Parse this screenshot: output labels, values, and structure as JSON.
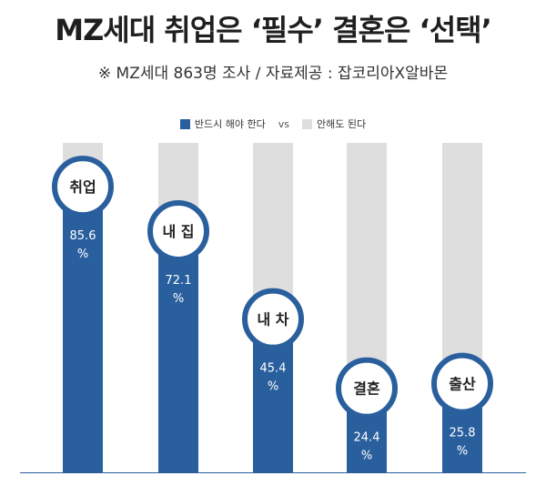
{
  "title": "MZ세대 취업은 ‘필수’ 결혼은 ‘선택’",
  "subtitle": "※ MZ세대 863명 조사 / 자료제공 : 잡코리아X알바몬",
  "colors": {
    "primary": "#2a5f9e",
    "secondary": "#dedede",
    "circle_border": "#2a5f9e",
    "axis": "#2a5f9e"
  },
  "chart_data": {
    "type": "bar",
    "stacked": true,
    "categories": [
      "취업",
      "내 집",
      "내 차",
      "결혼",
      "출산"
    ],
    "series": [
      {
        "name": "반드시 해야 한다",
        "values": [
          85.6,
          72.1,
          45.4,
          24.4,
          25.8
        ]
      },
      {
        "name": "안해도 된다",
        "values": [
          14.4,
          27.9,
          54.6,
          75.6,
          74.2
        ]
      }
    ],
    "value_labels": [
      "85.6",
      "72.1",
      "45.4",
      "24.4",
      "25.8"
    ],
    "unit": "%",
    "legend": {
      "separator": "vs",
      "placement": "top-center"
    },
    "ylim": [
      0,
      100
    ],
    "grid": false
  }
}
